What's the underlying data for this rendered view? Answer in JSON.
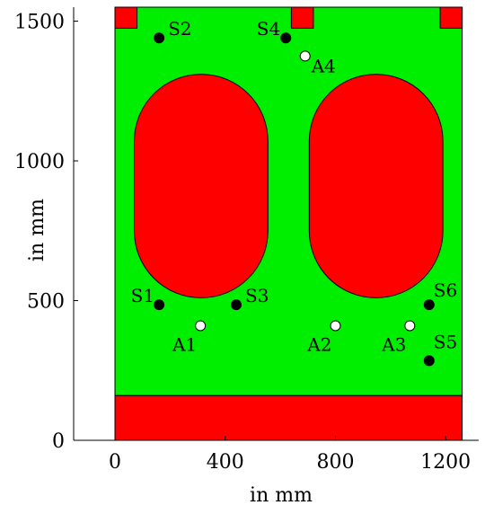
{
  "chart_data": {
    "type": "scatter",
    "xlabel": "in mm",
    "ylabel": "in mm",
    "xlim": [
      -150,
      1320
    ],
    "ylim": [
      0,
      1550
    ],
    "xticks": [
      0,
      400,
      800,
      1200
    ],
    "yticks": [
      0,
      500,
      1000,
      1500
    ],
    "grid": false,
    "colors": {
      "background_region": "#00ee00",
      "obstacle": "#ff0000",
      "outline": "#000000",
      "sensor": "#000000",
      "anchor": "#ffffff"
    },
    "regions": [
      {
        "name": "floor",
        "shape": "rect",
        "x": [
          0,
          1260
        ],
        "y": [
          160,
          1550
        ],
        "color": "#00ee00"
      },
      {
        "name": "bottom-block",
        "shape": "rect",
        "x": [
          0,
          1260
        ],
        "y": [
          0,
          160
        ],
        "color": "#ff0000"
      },
      {
        "name": "top-block-left",
        "shape": "rect",
        "x": [
          0,
          80
        ],
        "y": [
          1475,
          1550
        ],
        "color": "#ff0000"
      },
      {
        "name": "top-block-middle",
        "shape": "rect",
        "x": [
          640,
          720
        ],
        "y": [
          1475,
          1550
        ],
        "color": "#ff0000"
      },
      {
        "name": "top-block-right",
        "shape": "rect",
        "x": [
          1180,
          1260
        ],
        "y": [
          1475,
          1550
        ],
        "color": "#ff0000"
      },
      {
        "name": "obstacle-left",
        "shape": "stadium",
        "x": [
          70,
          555
        ],
        "y": [
          510,
          1310
        ],
        "color": "#ff0000"
      },
      {
        "name": "obstacle-right",
        "shape": "stadium",
        "x": [
          705,
          1190
        ],
        "y": [
          510,
          1310
        ],
        "color": "#ff0000"
      }
    ],
    "series": [
      {
        "marker": "filled",
        "points": [
          {
            "label": "S1",
            "x": 160,
            "y": 485
          },
          {
            "label": "S2",
            "x": 160,
            "y": 1440
          },
          {
            "label": "S3",
            "x": 440,
            "y": 485
          },
          {
            "label": "S4",
            "x": 620,
            "y": 1440
          },
          {
            "label": "S5",
            "x": 1140,
            "y": 285
          },
          {
            "label": "S6",
            "x": 1140,
            "y": 485
          }
        ]
      },
      {
        "marker": "hollow",
        "points": [
          {
            "label": "A1",
            "x": 310,
            "y": 410
          },
          {
            "label": "A2",
            "x": 800,
            "y": 410
          },
          {
            "label": "A3",
            "x": 1070,
            "y": 410
          },
          {
            "label": "A4",
            "x": 690,
            "y": 1375
          }
        ]
      }
    ]
  }
}
